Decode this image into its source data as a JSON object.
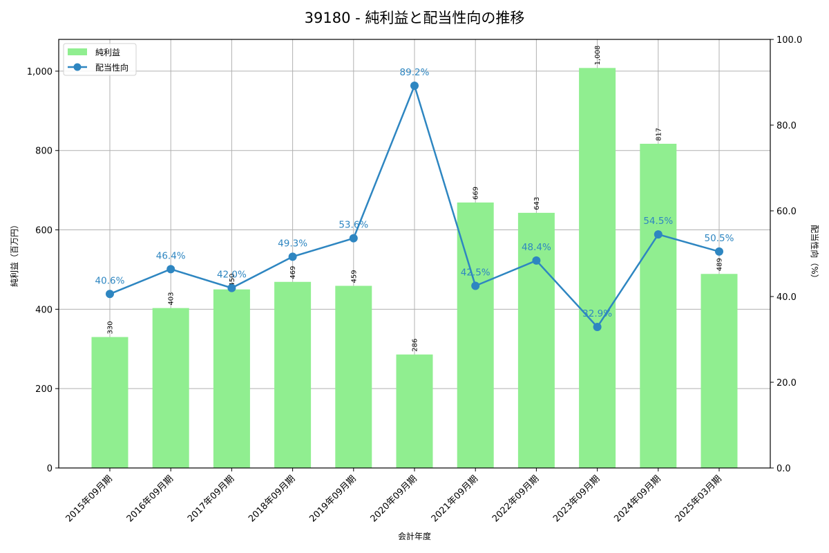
{
  "chart_data": {
    "type": "bar",
    "title": "39180 - 純利益と配当性向の推移",
    "xlabel": "会計年度",
    "ylabel": "純利益（百万円）",
    "y2label": "配当性向（%）",
    "ylim": [
      0,
      1080
    ],
    "y2lim": [
      0,
      100
    ],
    "yticks": [
      0,
      200,
      400,
      600,
      800,
      1000
    ],
    "ytick_labels": [
      "0",
      "200",
      "400",
      "600",
      "800",
      "1,000"
    ],
    "y2ticks": [
      0,
      20,
      40,
      60,
      80,
      100
    ],
    "y2tick_labels": [
      "0.0",
      "20.0",
      "40.0",
      "60.0",
      "80.0",
      "100.0"
    ],
    "grid": true,
    "legend_position": "upper left",
    "categories": [
      "2015年09月期",
      "2016年09月期",
      "2017年09月期",
      "2018年09月期",
      "2019年09月期",
      "2020年09月期",
      "2021年09月期",
      "2022年09月期",
      "2023年09月期",
      "2024年09月期",
      "2025年03月期"
    ],
    "series": [
      {
        "name": "純利益",
        "type": "bar",
        "axis": "left",
        "color": "#90ee90",
        "values": [
          330,
          403,
          450,
          469,
          459,
          286,
          669,
          643,
          1008,
          817,
          489
        ],
        "labels": [
          "330",
          "403",
          "450",
          "469",
          "459",
          "286",
          "669",
          "643",
          "1,008",
          "817",
          "489"
        ]
      },
      {
        "name": "配当性向",
        "type": "line",
        "axis": "right",
        "color": "#2e86c1",
        "values": [
          40.6,
          46.4,
          42.0,
          49.3,
          53.6,
          89.2,
          42.5,
          48.4,
          32.9,
          54.5,
          50.5
        ],
        "labels": [
          "40.6%",
          "46.4%",
          "42.0%",
          "49.3%",
          "53.6%",
          "89.2%",
          "42.5%",
          "48.4%",
          "32.9%",
          "54.5%",
          "50.5%"
        ]
      }
    ]
  }
}
